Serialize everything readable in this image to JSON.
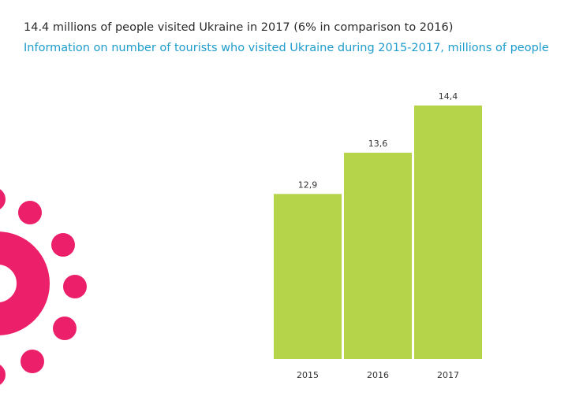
{
  "header": {
    "title": "14.4 millions of people visited Ukraine in 2017 (6% in comparison to 2016)",
    "subtitle": "Information on number of tourists who visited Ukraine during 2015-2017, millions of people"
  },
  "colors": {
    "bar": "#b5d44a",
    "accent": "#ec1f6a",
    "subtitle": "#1e9ccc"
  },
  "chart_data": {
    "type": "bar",
    "title": "Information on number of tourists who visited Ukraine during 2015-2017, millions of people",
    "categories": [
      "2015",
      "2016",
      "2017"
    ],
    "values": [
      12.9,
      13.6,
      14.4
    ],
    "value_labels": [
      "12,9",
      "13,6",
      "14,4"
    ],
    "xlabel": "",
    "ylabel": "",
    "ylim": [
      10.1,
      14.4
    ],
    "grid": false
  }
}
